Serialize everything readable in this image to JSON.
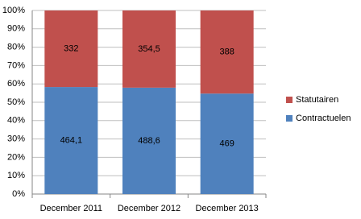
{
  "chart_data": {
    "type": "bar",
    "stacking": "percent",
    "categories": [
      "December 2011",
      "December 2012",
      "December 2013"
    ],
    "series": [
      {
        "name": "Contractuelen",
        "color": "#4f81bd",
        "values": [
          464.1,
          488.6,
          469
        ],
        "value_labels": [
          "464,1",
          "488,6",
          "469"
        ]
      },
      {
        "name": "Statutairen",
        "color": "#c0504d",
        "values": [
          332,
          354.5,
          388
        ],
        "value_labels": [
          "332",
          "354,5",
          "388"
        ]
      }
    ],
    "ylim": [
      0,
      100
    ],
    "yticks": [
      {
        "value": 0,
        "label": "0%"
      },
      {
        "value": 10,
        "label": "10%"
      },
      {
        "value": 20,
        "label": "20%"
      },
      {
        "value": 30,
        "label": "30%"
      },
      {
        "value": 40,
        "label": "40%"
      },
      {
        "value": 50,
        "label": "50%"
      },
      {
        "value": 60,
        "label": "60%"
      },
      {
        "value": 70,
        "label": "70%"
      },
      {
        "value": 80,
        "label": "80%"
      },
      {
        "value": 90,
        "label": "90%"
      },
      {
        "value": 100,
        "label": "100%"
      }
    ],
    "grid": true,
    "legend": "right"
  }
}
